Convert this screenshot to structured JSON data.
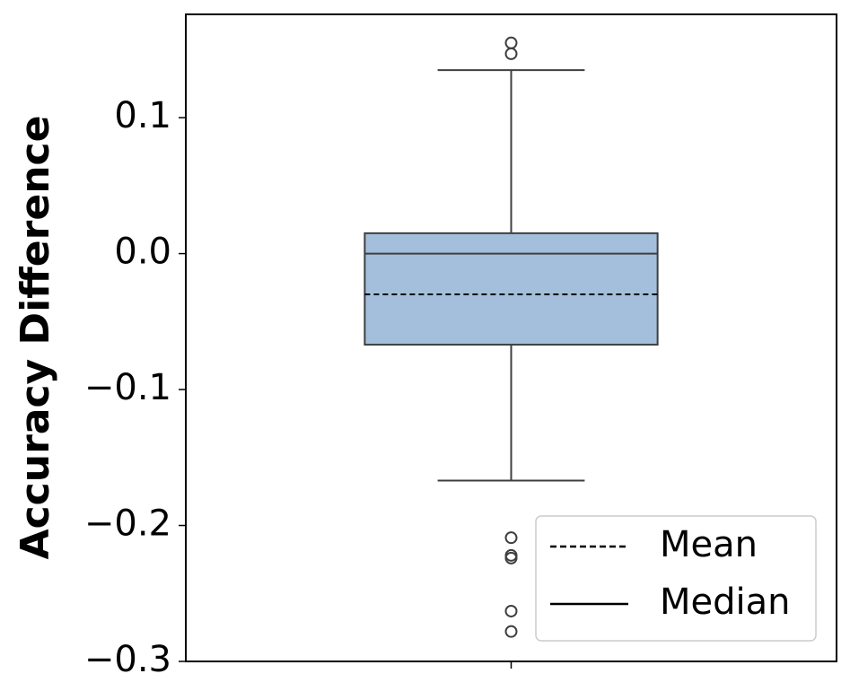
{
  "chart_data": {
    "type": "box",
    "ylabel": "Accuracy Difference",
    "categories": [
      null
    ],
    "ylim": [
      -0.3,
      0.176
    ],
    "yticks": [
      {
        "value": -0.3,
        "label": "−0.3"
      },
      {
        "value": -0.2,
        "label": "−0.2"
      },
      {
        "value": -0.1,
        "label": "−0.1"
      },
      {
        "value": 0,
        "label": "0.0"
      },
      0.1
    ],
    "color": "#a3bfdb",
    "box": {
      "q1": -0.067,
      "median": 0,
      "q3": 0.015,
      "mean": -0.03,
      "whisker_low": -0.167,
      "whisker_high": 0.135,
      "outliers": [
        0.155,
        0.147,
        -0.209,
        -0.222,
        -0.224,
        -0.263,
        -0.278
      ]
    },
    "legend": [
      {
        "name": "Mean",
        "style": "dashed"
      },
      {
        "name": "Median",
        "style": "solid"
      }
    ],
    "legend_loc": "lower right"
  }
}
